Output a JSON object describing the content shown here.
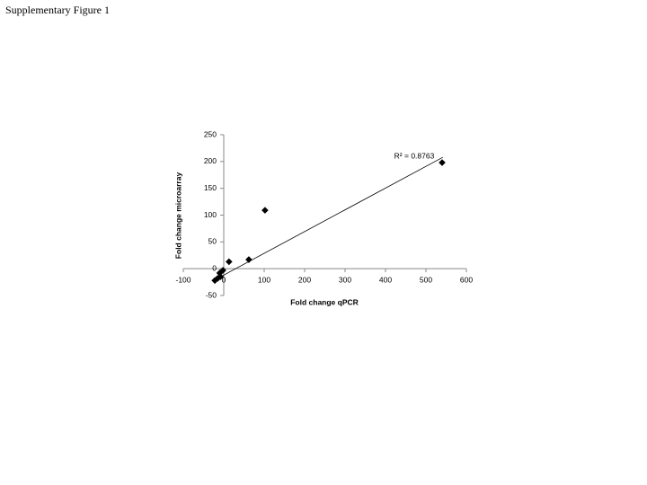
{
  "title": "Supplementary Figure 1",
  "chart_data": {
    "type": "scatter",
    "xlabel": "Fold change qPCR",
    "ylabel": "Fold change microarray",
    "annotation": "R² = 0.8763",
    "x": [
      540,
      102,
      62,
      13,
      -2,
      -10,
      -8,
      -15,
      -22
    ],
    "series": [
      {
        "name": "Fold change microarray",
        "color": "#000000",
        "values": [
          198,
          109,
          17,
          13,
          -3,
          -8,
          -15,
          -18,
          -22
        ]
      }
    ],
    "trendline": {
      "x": [
        -20,
        542
      ],
      "y": [
        -20,
        208
      ],
      "color": "#000000"
    },
    "xlim": [
      -100,
      600
    ],
    "xticks": [
      -100,
      0,
      100,
      200,
      300,
      400,
      500,
      600
    ],
    "ylim": [
      -50,
      250
    ],
    "yticks": [
      -50,
      0,
      50,
      100,
      150,
      200,
      250
    ],
    "grid": false
  }
}
